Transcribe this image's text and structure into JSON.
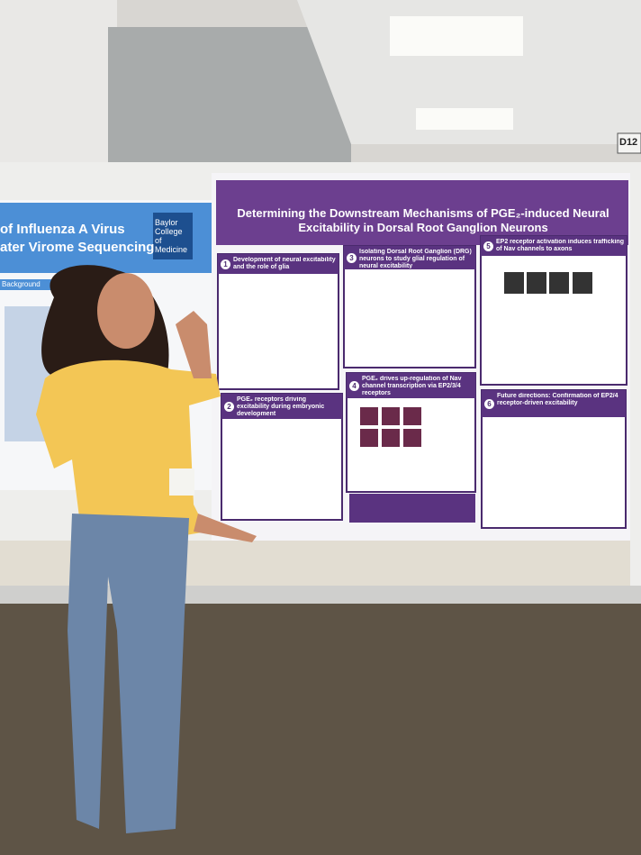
{
  "sign": "D12",
  "left_poster": {
    "title_lines": [
      "of Influenza A Virus",
      "ater Virome Sequencing"
    ],
    "logo": "Baylor College of Medicine",
    "section": "Background"
  },
  "poster": {
    "title": "Determining the Downstream Mechanisms of PGE₂-induced Neural Excitability in Dorsal Root Ganglion Neurons",
    "panels": [
      {
        "number": "1",
        "heading": "Development of neural excitability and the role of glia"
      },
      {
        "number": "3",
        "heading": "Isolating Dorsal Root Ganglion (DRG) neurons to study glial regulation of neural excitability"
      },
      {
        "number": "5",
        "heading": "EP2 receptor activation induces trafficking of Nav channels to axons"
      },
      {
        "number": "2",
        "heading": "PGE₂ receptors driving excitability during embryonic development"
      },
      {
        "number": "4",
        "heading": "PGE₂ drives up-regulation of Nav channel transcription via EP2/3/4 receptors"
      },
      {
        "number": "6",
        "heading": "Future directions: Confirmation of EP2/4 receptor-driven excitability"
      }
    ]
  }
}
